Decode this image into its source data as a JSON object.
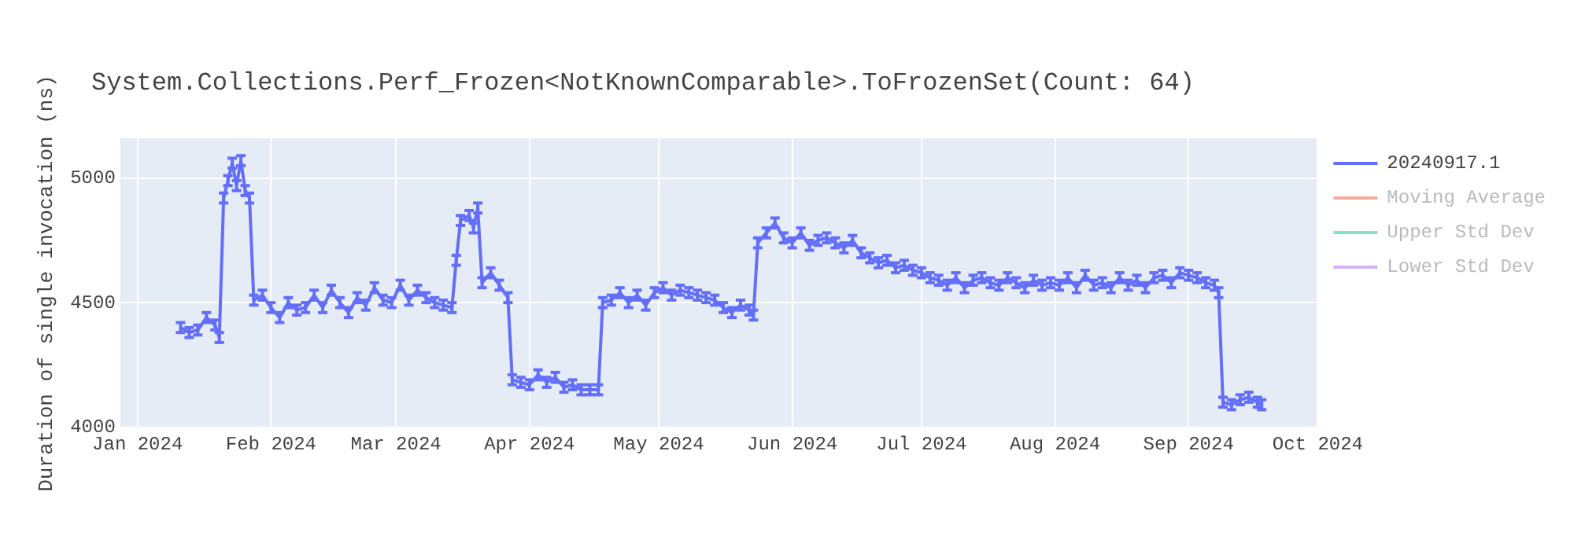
{
  "chart_data": {
    "type": "line",
    "title": "System.Collections.Perf_Frozen<NotKnownComparable>.ToFrozenSet(Count: 64)",
    "ylabel": "Duration of single invocation (ns)",
    "x": [
      "2024-01-11",
      "2024-01-13",
      "2024-01-15",
      "2024-01-17",
      "2024-01-19",
      "2024-01-20",
      "2024-01-21",
      "2024-01-22",
      "2024-01-23",
      "2024-01-24",
      "2024-01-25",
      "2024-01-26",
      "2024-01-27",
      "2024-01-28",
      "2024-01-30",
      "2024-02-01",
      "2024-02-03",
      "2024-02-05",
      "2024-02-07",
      "2024-02-09",
      "2024-02-11",
      "2024-02-13",
      "2024-02-15",
      "2024-02-17",
      "2024-02-19",
      "2024-02-21",
      "2024-02-23",
      "2024-02-25",
      "2024-02-27",
      "2024-02-29",
      "2024-03-02",
      "2024-03-04",
      "2024-03-06",
      "2024-03-08",
      "2024-03-10",
      "2024-03-12",
      "2024-03-14",
      "2024-03-15",
      "2024-03-16",
      "2024-03-18",
      "2024-03-19",
      "2024-03-20",
      "2024-03-21",
      "2024-03-23",
      "2024-03-25",
      "2024-03-27",
      "2024-03-28",
      "2024-03-30",
      "2024-04-01",
      "2024-04-03",
      "2024-04-05",
      "2024-04-07",
      "2024-04-09",
      "2024-04-11",
      "2024-04-13",
      "2024-04-15",
      "2024-04-17",
      "2024-04-18",
      "2024-04-20",
      "2024-04-22",
      "2024-04-24",
      "2024-04-26",
      "2024-04-28",
      "2024-04-30",
      "2024-05-02",
      "2024-05-04",
      "2024-05-06",
      "2024-05-08",
      "2024-05-10",
      "2024-05-12",
      "2024-05-14",
      "2024-05-16",
      "2024-05-18",
      "2024-05-20",
      "2024-05-22",
      "2024-05-23",
      "2024-05-24",
      "2024-05-26",
      "2024-05-28",
      "2024-05-30",
      "2024-06-01",
      "2024-06-03",
      "2024-06-05",
      "2024-06-07",
      "2024-06-09",
      "2024-06-11",
      "2024-06-13",
      "2024-06-15",
      "2024-06-17",
      "2024-06-19",
      "2024-06-21",
      "2024-06-23",
      "2024-06-25",
      "2024-06-27",
      "2024-06-29",
      "2024-07-01",
      "2024-07-03",
      "2024-07-05",
      "2024-07-07",
      "2024-07-09",
      "2024-07-11",
      "2024-07-13",
      "2024-07-15",
      "2024-07-17",
      "2024-07-19",
      "2024-07-21",
      "2024-07-23",
      "2024-07-25",
      "2024-07-27",
      "2024-07-29",
      "2024-07-31",
      "2024-08-02",
      "2024-08-04",
      "2024-08-06",
      "2024-08-08",
      "2024-08-10",
      "2024-08-12",
      "2024-08-14",
      "2024-08-16",
      "2024-08-18",
      "2024-08-20",
      "2024-08-22",
      "2024-08-24",
      "2024-08-26",
      "2024-08-28",
      "2024-08-30",
      "2024-09-01",
      "2024-09-03",
      "2024-09-05",
      "2024-09-07",
      "2024-09-08",
      "2024-09-09",
      "2024-09-11",
      "2024-09-13",
      "2024-09-15",
      "2024-09-17",
      "2024-09-18"
    ],
    "series": [
      {
        "name": "20240917.1",
        "color": "#636efa",
        "values": [
          4400,
          4380,
          4390,
          4440,
          4410,
          4360,
          4920,
          4990,
          5060,
          4970,
          5070,
          4950,
          4920,
          4510,
          4530,
          4480,
          4440,
          4500,
          4470,
          4480,
          4530,
          4480,
          4550,
          4500,
          4460,
          4520,
          4490,
          4560,
          4510,
          4500,
          4570,
          4510,
          4550,
          4520,
          4500,
          4490,
          4480,
          4670,
          4830,
          4850,
          4800,
          4880,
          4580,
          4620,
          4570,
          4520,
          4190,
          4180,
          4170,
          4210,
          4180,
          4200,
          4160,
          4170,
          4150,
          4150,
          4150,
          4500,
          4510,
          4540,
          4500,
          4530,
          4490,
          4540,
          4560,
          4530,
          4550,
          4540,
          4530,
          4520,
          4510,
          4480,
          4460,
          4490,
          4470,
          4450,
          4740,
          4780,
          4820,
          4760,
          4740,
          4780,
          4730,
          4750,
          4760,
          4740,
          4720,
          4750,
          4700,
          4680,
          4660,
          4670,
          4640,
          4650,
          4630,
          4620,
          4600,
          4590,
          4570,
          4600,
          4560,
          4590,
          4600,
          4580,
          4570,
          4600,
          4580,
          4560,
          4590,
          4570,
          4580,
          4570,
          4600,
          4560,
          4610,
          4570,
          4580,
          4560,
          4600,
          4570,
          4590,
          4560,
          4600,
          4610,
          4580,
          4620,
          4610,
          4600,
          4580,
          4570,
          4540,
          4100,
          4090,
          4110,
          4120,
          4100,
          4090
        ],
        "errors": [
          20,
          20,
          20,
          20,
          20,
          20,
          20,
          20,
          20,
          20,
          20,
          20,
          20,
          20,
          20,
          20,
          20,
          20,
          20,
          20,
          20,
          20,
          20,
          20,
          20,
          20,
          20,
          20,
          20,
          20,
          20,
          20,
          20,
          20,
          20,
          20,
          20,
          20,
          20,
          20,
          20,
          20,
          20,
          20,
          20,
          20,
          20,
          20,
          20,
          20,
          20,
          20,
          20,
          20,
          20,
          20,
          20,
          20,
          20,
          20,
          20,
          20,
          20,
          20,
          20,
          20,
          20,
          20,
          20,
          20,
          20,
          20,
          20,
          20,
          20,
          20,
          20,
          20,
          20,
          20,
          20,
          20,
          20,
          20,
          20,
          20,
          20,
          20,
          20,
          20,
          20,
          20,
          20,
          20,
          20,
          20,
          20,
          20,
          20,
          20,
          20,
          20,
          20,
          20,
          20,
          20,
          20,
          20,
          20,
          20,
          20,
          20,
          20,
          20,
          20,
          20,
          20,
          20,
          20,
          20,
          20,
          20,
          20,
          20,
          20,
          20,
          20,
          20,
          20,
          20,
          20,
          20,
          20,
          20,
          20,
          20,
          20
        ]
      },
      {
        "name": "Moving Average",
        "color": "#f7aa9d",
        "values": [
          null,
          null,
          null,
          null,
          null,
          null,
          null,
          null,
          null,
          null,
          null,
          null,
          null,
          null,
          null,
          null,
          null,
          null,
          null,
          null,
          null,
          null,
          null,
          null,
          null,
          null,
          null,
          null,
          null,
          null,
          null,
          null,
          null,
          null,
          null,
          null,
          null,
          null,
          null,
          null,
          null,
          null,
          null,
          null,
          null,
          null,
          null,
          null,
          null,
          null,
          null,
          null,
          null,
          null,
          null,
          null,
          null,
          null,
          null,
          null,
          null,
          null,
          null,
          null,
          null,
          null,
          null,
          null,
          null,
          null,
          null,
          null,
          null,
          null,
          null,
          null,
          null,
          null,
          null,
          null,
          null,
          null,
          null,
          null,
          null,
          null,
          null,
          null,
          null,
          null,
          null,
          null,
          null,
          null,
          null,
          null,
          null,
          null,
          null,
          null,
          null,
          null,
          null,
          null,
          null,
          null,
          null,
          null,
          null,
          null,
          null,
          null,
          null,
          null,
          null,
          null,
          null,
          null,
          null,
          null,
          null,
          null,
          null,
          null,
          null,
          null,
          null,
          null,
          null,
          null,
          null,
          null,
          null,
          null,
          null,
          null,
          null
        ]
      },
      {
        "name": "Upper Std Dev",
        "color": "#7fe5ca",
        "values": [
          null,
          null,
          null,
          null,
          null,
          null,
          null,
          null,
          null,
          null,
          null,
          null,
          null,
          null,
          null,
          null,
          null,
          null,
          null,
          null,
          null,
          null,
          null,
          null,
          null,
          null,
          null,
          null,
          null,
          null,
          null,
          null,
          null,
          null,
          null,
          null,
          null,
          null,
          null,
          null,
          null,
          null,
          null,
          null,
          null,
          null,
          null,
          null,
          null,
          null,
          null,
          null,
          null,
          null,
          null,
          null,
          null,
          null,
          null,
          null,
          null,
          null,
          null,
          null,
          null,
          null,
          null,
          null,
          null,
          null,
          null,
          null,
          null,
          null,
          null,
          null,
          null,
          null,
          null,
          null,
          null,
          null,
          null,
          null,
          null,
          null,
          null,
          null,
          null,
          null,
          null,
          null,
          null,
          null,
          null,
          null,
          null,
          null,
          null,
          null,
          null,
          null,
          null,
          null,
          null,
          null,
          null,
          null,
          null,
          null,
          null,
          null,
          null,
          null,
          null,
          null,
          null,
          null,
          null,
          null,
          null,
          null,
          null,
          null,
          null,
          null,
          null,
          null,
          null,
          null,
          null,
          null,
          null,
          null,
          null,
          null,
          null
        ]
      },
      {
        "name": "Lower Std Dev",
        "color": "#d5b1fc",
        "values": [
          null,
          null,
          null,
          null,
          null,
          null,
          null,
          null,
          null,
          null,
          null,
          null,
          null,
          null,
          null,
          null,
          null,
          null,
          null,
          null,
          null,
          null,
          null,
          null,
          null,
          null,
          null,
          null,
          null,
          null,
          null,
          null,
          null,
          null,
          null,
          null,
          null,
          null,
          null,
          null,
          null,
          null,
          null,
          null,
          null,
          null,
          null,
          null,
          null,
          null,
          null,
          null,
          null,
          null,
          null,
          null,
          null,
          null,
          null,
          null,
          null,
          null,
          null,
          null,
          null,
          null,
          null,
          null,
          null,
          null,
          null,
          null,
          null,
          null,
          null,
          null,
          null,
          null,
          null,
          null,
          null,
          null,
          null,
          null,
          null,
          null,
          null,
          null,
          null,
          null,
          null,
          null,
          null,
          null,
          null,
          null,
          null,
          null,
          null,
          null,
          null,
          null,
          null,
          null,
          null,
          null,
          null,
          null,
          null,
          null,
          null,
          null,
          null,
          null,
          null,
          null,
          null,
          null,
          null,
          null,
          null,
          null,
          null,
          null,
          null,
          null,
          null,
          null,
          null,
          null,
          null,
          null,
          null,
          null,
          null,
          null,
          null
        ]
      }
    ],
    "xlim": [
      "2023-12-28",
      "2024-10-01"
    ],
    "xticks": [
      {
        "value": "2024-01-01",
        "label": "Jan 2024"
      },
      {
        "value": "2024-02-01",
        "label": "Feb 2024"
      },
      {
        "value": "2024-03-01",
        "label": "Mar 2024"
      },
      {
        "value": "2024-04-01",
        "label": "Apr 2024"
      },
      {
        "value": "2024-05-01",
        "label": "May 2024"
      },
      {
        "value": "2024-06-01",
        "label": "Jun 2024"
      },
      {
        "value": "2024-07-01",
        "label": "Jul 2024"
      },
      {
        "value": "2024-08-01",
        "label": "Aug 2024"
      },
      {
        "value": "2024-09-01",
        "label": "Sep 2024"
      },
      {
        "value": "2024-10-01",
        "label": "Oct 2024"
      }
    ],
    "ylim": [
      3995,
      5160
    ],
    "yticks": [
      4000,
      4500,
      5000
    ],
    "grid": true,
    "legend": "right",
    "line_style": "solid"
  }
}
